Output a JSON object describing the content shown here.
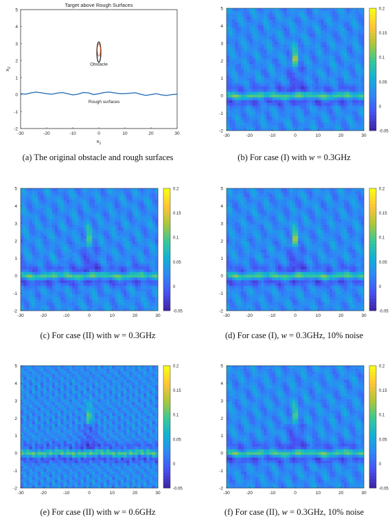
{
  "captions": {
    "a": "(a) The original obstacle and rough surfaces",
    "b_pre": "(b) For case (I) with ",
    "b_math": "w",
    "b_post": " = 0.3GHz",
    "c_pre": "(c) For case (II) with ",
    "c_math": "w",
    "c_post": " = 0.3GHz",
    "d_pre": "(d) For case (I), ",
    "d_math": "w",
    "d_post": " = 0.3GHz, 10% noise",
    "e_pre": "(e) For case (II) with ",
    "e_math": "w",
    "e_post": " = 0.6GHz",
    "f_pre": "(f) For case (II), ",
    "f_math": "w",
    "f_post": " = 0.3GHz, 10% noise"
  },
  "colors": {
    "surface_line": "#2a72b8",
    "obstacle_outer": "#111111",
    "obstacle_inner": "#e0531f"
  },
  "chart_data": [
    {
      "type": "line",
      "title": "Target above Rough Surfaces",
      "xlabel": "x1",
      "ylabel": "x2",
      "xlim": [
        -30,
        30
      ],
      "ylim": [
        -2,
        5
      ],
      "xticks": [
        -30,
        -20,
        -10,
        0,
        10,
        20,
        30
      ],
      "yticks": [
        -2,
        -1,
        0,
        1,
        2,
        3,
        4,
        5
      ],
      "annotations": [
        {
          "text": "Obstacle",
          "x": 0,
          "y": 1.7
        },
        {
          "text": "Rough surfaces",
          "x": 2,
          "y": -0.5
        }
      ],
      "obstacle": {
        "center": [
          0,
          2.5
        ],
        "semi_axes": [
          0.35,
          0.6
        ]
      },
      "series": [
        {
          "x": [
            -30,
            -28,
            -26,
            -24,
            -22,
            -20,
            -18,
            -16,
            -14,
            -12,
            -10,
            -8,
            -6,
            -4,
            -2,
            0,
            2,
            4,
            6,
            8,
            10,
            12,
            14,
            16,
            18,
            20,
            22,
            24,
            26,
            28,
            30
          ],
          "y": [
            0.05,
            0.02,
            0.1,
            0.15,
            0.1,
            0.05,
            0.02,
            0.08,
            0.12,
            0.05,
            -0.02,
            0.02,
            0.12,
            0.1,
            0.0,
            0.05,
            0.12,
            0.15,
            0.1,
            0.05,
            0.05,
            0.08,
            0.1,
            0.02,
            -0.05,
            0.0,
            0.05,
            -0.02,
            -0.05,
            0.0,
            0.02
          ]
        }
      ]
    },
    {
      "type": "heatmap",
      "panel": "b",
      "xlim": [
        -30,
        30
      ],
      "ylim": [
        -2,
        5
      ],
      "xticks": [
        -30,
        -20,
        -10,
        0,
        10,
        20,
        30
      ],
      "yticks": [
        -2,
        -1,
        0,
        1,
        2,
        3,
        4,
        5
      ],
      "colorbar_ticks": [
        -0.05,
        0,
        0.05,
        0.1,
        0.15,
        0.2
      ],
      "clim": [
        -0.05,
        0.2
      ]
    },
    {
      "type": "heatmap",
      "panel": "c",
      "xlim": [
        -30,
        30
      ],
      "ylim": [
        -2,
        5
      ],
      "xticks": [
        -30,
        -20,
        -10,
        0,
        10,
        20,
        30
      ],
      "yticks": [
        -2,
        -1,
        0,
        1,
        2,
        3,
        4,
        5
      ],
      "colorbar_ticks": [
        -0.05,
        0,
        0.05,
        0.1,
        0.15,
        0.2
      ],
      "clim": [
        -0.05,
        0.2
      ]
    },
    {
      "type": "heatmap",
      "panel": "d",
      "xlim": [
        -30,
        30
      ],
      "ylim": [
        -2,
        5
      ],
      "xticks": [
        -30,
        -20,
        -10,
        0,
        10,
        20,
        30
      ],
      "yticks": [
        -2,
        -1,
        0,
        1,
        2,
        3,
        4,
        5
      ],
      "colorbar_ticks": [
        -0.05,
        0,
        0.05,
        0.1,
        0.15,
        0.2
      ],
      "clim": [
        -0.05,
        0.2
      ]
    },
    {
      "type": "heatmap",
      "panel": "e",
      "xlim": [
        -30,
        30
      ],
      "ylim": [
        -2,
        5
      ],
      "xticks": [
        -30,
        -20,
        -10,
        0,
        10,
        20,
        30
      ],
      "yticks": [
        -2,
        -1,
        0,
        1,
        2,
        3,
        4,
        5
      ],
      "colorbar_ticks": [
        -0.05,
        0,
        0.05,
        0.1,
        0.15,
        0.2
      ],
      "clim": [
        -0.05,
        0.2
      ]
    },
    {
      "type": "heatmap",
      "panel": "f",
      "xlim": [
        -30,
        30
      ],
      "ylim": [
        -2,
        5
      ],
      "xticks": [
        -30,
        -20,
        -10,
        0,
        10,
        20,
        30
      ],
      "yticks": [
        -2,
        -1,
        0,
        1,
        2,
        3,
        4,
        5
      ],
      "colorbar_ticks": [
        -0.05,
        0,
        0.05,
        0.1,
        0.15,
        0.2
      ],
      "clim": [
        -0.05,
        0.2
      ]
    }
  ]
}
